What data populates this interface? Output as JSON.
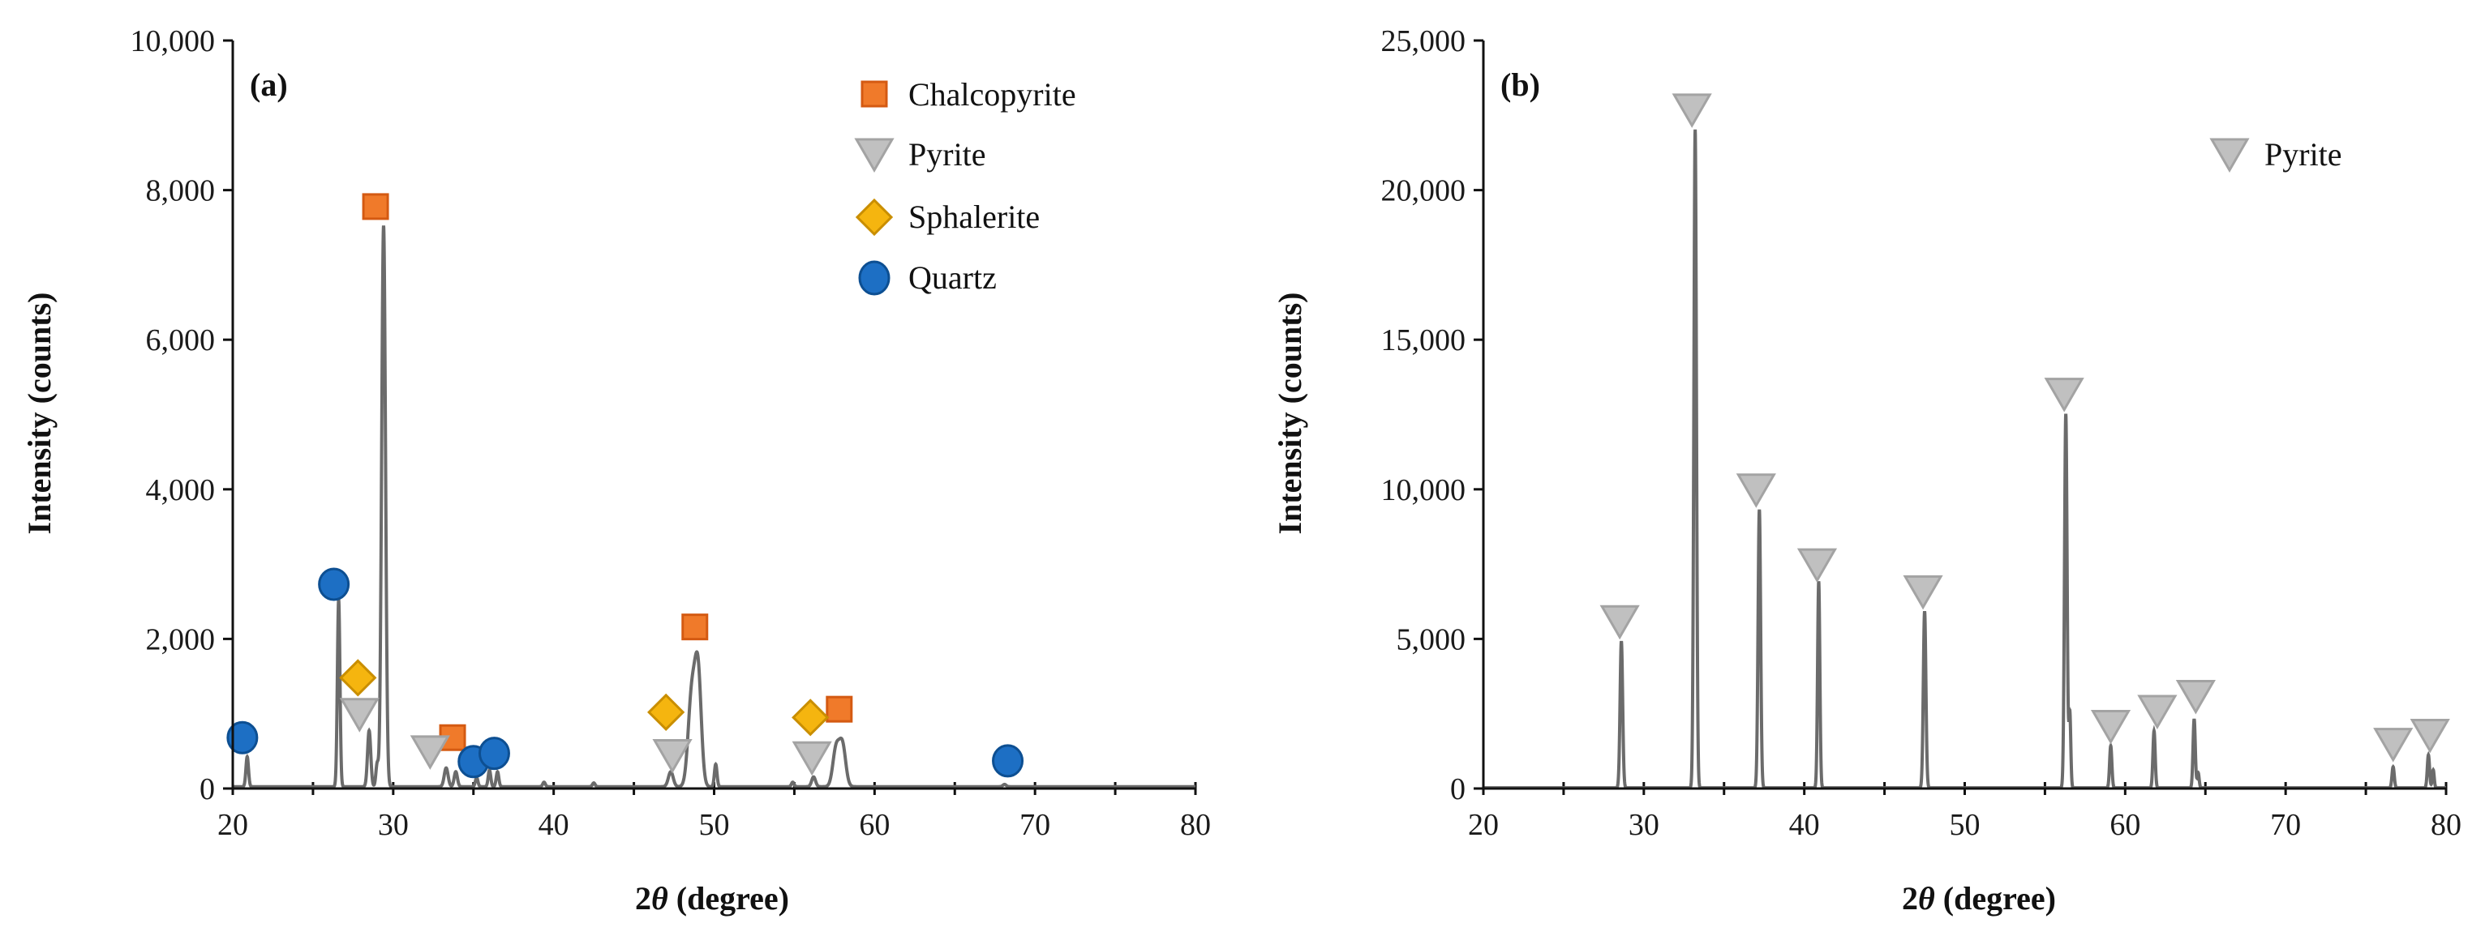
{
  "colors": {
    "trace": "#6b6b6b",
    "axis": "#111111",
    "chalcopyrite_fill": "#f07a2a",
    "chalcopyrite_edge": "#d45a12",
    "pyrite_fill": "#c0c0c0",
    "pyrite_edge": "#a3a3a3",
    "sphalerite_fill": "#f5b50f",
    "sphalerite_edge": "#c98e00",
    "quartz_fill": "#1d6fc4",
    "quartz_edge": "#0d4f92"
  },
  "chart_data": [
    {
      "type": "line",
      "panel": "(a)",
      "xlabel_prefix": "2",
      "xlabel_theta": "θ",
      "xlabel_suffix": " (degree)",
      "ylabel": "Intensity (counts)",
      "xlim": [
        20,
        80
      ],
      "ylim": [
        0,
        10000
      ],
      "x_ticks": [
        20,
        30,
        40,
        50,
        60,
        70,
        80
      ],
      "x_tick_labels": [
        "20",
        "30",
        "40",
        "50",
        "60",
        "70",
        "80"
      ],
      "y_ticks": [
        0,
        2000,
        4000,
        6000,
        8000,
        10000
      ],
      "y_tick_labels": [
        "0",
        "2,000",
        "4,000",
        "6,000",
        "8,000",
        "10,000"
      ],
      "legend": [
        {
          "name": "Chalcopyrite",
          "marker": "square"
        },
        {
          "name": "Pyrite",
          "marker": "triangle-down"
        },
        {
          "name": "Sphalerite",
          "marker": "diamond"
        },
        {
          "name": "Quartz",
          "marker": "circle"
        }
      ],
      "peaks": [
        {
          "x": 20.9,
          "y": 400,
          "w": 0.08
        },
        {
          "x": 26.6,
          "y": 2500,
          "w": 0.08
        },
        {
          "x": 28.5,
          "y": 750,
          "w": 0.1
        },
        {
          "x": 29.0,
          "y": 300,
          "w": 0.08
        },
        {
          "x": 29.4,
          "y": 7500,
          "w": 0.12
        },
        {
          "x": 33.3,
          "y": 250,
          "w": 0.12
        },
        {
          "x": 33.9,
          "y": 200,
          "w": 0.1
        },
        {
          "x": 35.2,
          "y": 120,
          "w": 0.08
        },
        {
          "x": 36.0,
          "y": 220,
          "w": 0.08
        },
        {
          "x": 36.5,
          "y": 200,
          "w": 0.08
        },
        {
          "x": 39.4,
          "y": 60,
          "w": 0.08
        },
        {
          "x": 42.5,
          "y": 50,
          "w": 0.08
        },
        {
          "x": 47.3,
          "y": 200,
          "w": 0.15
        },
        {
          "x": 48.6,
          "y": 1200,
          "w": 0.22
        },
        {
          "x": 49.0,
          "y": 1500,
          "w": 0.2
        },
        {
          "x": 50.1,
          "y": 300,
          "w": 0.08
        },
        {
          "x": 54.9,
          "y": 60,
          "w": 0.08
        },
        {
          "x": 56.2,
          "y": 130,
          "w": 0.12
        },
        {
          "x": 57.6,
          "y": 500,
          "w": 0.2
        },
        {
          "x": 58.0,
          "y": 550,
          "w": 0.2
        },
        {
          "x": 68.1,
          "y": 30,
          "w": 0.1
        }
      ],
      "markers": [
        {
          "mineral": "Chalcopyrite",
          "marker": "square",
          "points": [
            [
              28.9,
              7780
            ],
            [
              33.7,
              680
            ],
            [
              48.8,
              2160
            ],
            [
              57.8,
              1060
            ]
          ]
        },
        {
          "mineral": "Pyrite",
          "marker": "triangle-down",
          "points": [
            [
              27.9,
              1000
            ],
            [
              32.3,
              500
            ],
            [
              47.4,
              450
            ],
            [
              56.1,
              420
            ]
          ]
        },
        {
          "mineral": "Sphalerite",
          "marker": "diamond",
          "points": [
            [
              27.8,
              1480
            ],
            [
              47.0,
              1020
            ],
            [
              56.0,
              950
            ]
          ]
        },
        {
          "mineral": "Quartz",
          "marker": "circle",
          "points": [
            [
              20.6,
              680
            ],
            [
              26.3,
              2730
            ],
            [
              35.0,
              360
            ],
            [
              36.3,
              470
            ],
            [
              68.3,
              370
            ]
          ]
        }
      ]
    },
    {
      "type": "line",
      "panel": "(b)",
      "xlabel_prefix": "2",
      "xlabel_theta": "θ",
      "xlabel_suffix": " (degree)",
      "ylabel": "Intensity (counts)",
      "xlim": [
        20,
        80
      ],
      "ylim": [
        0,
        25000
      ],
      "x_ticks": [
        20,
        30,
        40,
        50,
        60,
        70,
        80
      ],
      "x_tick_labels": [
        "20",
        "30",
        "40",
        "50",
        "60",
        "70",
        "80"
      ],
      "y_ticks": [
        0,
        5000,
        10000,
        15000,
        20000,
        25000
      ],
      "y_tick_labels": [
        "0",
        "5,000",
        "10,000",
        "15,000",
        "20,000",
        "25,000"
      ],
      "legend": [
        {
          "name": "Pyrite",
          "marker": "triangle-down"
        }
      ],
      "peaks": [
        {
          "x": 28.6,
          "y": 4900,
          "w": 0.08
        },
        {
          "x": 33.2,
          "y": 22000,
          "w": 0.08
        },
        {
          "x": 37.2,
          "y": 9300,
          "w": 0.08
        },
        {
          "x": 40.9,
          "y": 6900,
          "w": 0.07
        },
        {
          "x": 47.5,
          "y": 5900,
          "w": 0.08
        },
        {
          "x": 56.3,
          "y": 12500,
          "w": 0.08
        },
        {
          "x": 56.55,
          "y": 2500,
          "w": 0.06
        },
        {
          "x": 59.1,
          "y": 1400,
          "w": 0.07
        },
        {
          "x": 61.8,
          "y": 1900,
          "w": 0.07
        },
        {
          "x": 64.3,
          "y": 2300,
          "w": 0.07
        },
        {
          "x": 64.55,
          "y": 500,
          "w": 0.06
        },
        {
          "x": 76.7,
          "y": 700,
          "w": 0.07
        },
        {
          "x": 78.9,
          "y": 1100,
          "w": 0.07
        },
        {
          "x": 79.2,
          "y": 600,
          "w": 0.06
        }
      ],
      "markers": [
        {
          "mineral": "Pyrite",
          "marker": "triangle-down",
          "points": [
            [
              28.5,
              5600
            ],
            [
              33.0,
              22700
            ],
            [
              37.0,
              10000
            ],
            [
              40.8,
              7500
            ],
            [
              47.4,
              6600
            ],
            [
              56.2,
              13200
            ],
            [
              59.1,
              2100
            ],
            [
              62.0,
              2600
            ],
            [
              64.4,
              3100
            ],
            [
              76.7,
              1500
            ],
            [
              79.0,
              1800
            ]
          ]
        }
      ]
    }
  ]
}
